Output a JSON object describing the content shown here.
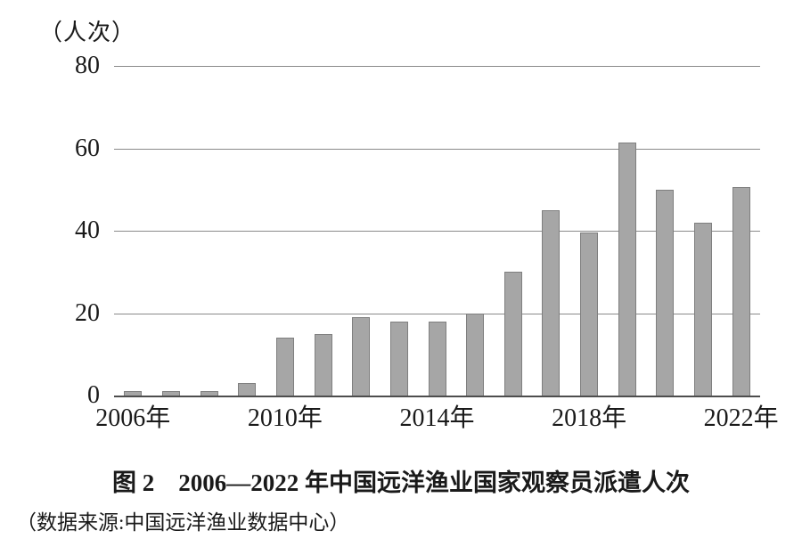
{
  "chart_data": {
    "type": "bar",
    "title": "图 2　2006—2022 年中国远洋渔业国家观察员派遣人次",
    "unit_label": "（人次）",
    "x": [
      2006,
      2007,
      2008,
      2009,
      2010,
      2011,
      2012,
      2013,
      2014,
      2015,
      2016,
      2017,
      2018,
      2019,
      2020,
      2021,
      2022
    ],
    "values": [
      1,
      1,
      1,
      3,
      14,
      15,
      19,
      18,
      18,
      20,
      30,
      45,
      39.5,
      61.5,
      50,
      42,
      50.5
    ],
    "y_ticks": [
      0,
      20,
      40,
      60,
      80
    ],
    "ylim": [
      0,
      80
    ],
    "x_tick_labels": [
      "2006年",
      "2010年",
      "2014年",
      "2018年",
      "2022年"
    ],
    "x_tick_positions": [
      0,
      4,
      8,
      12,
      16
    ],
    "grid": true,
    "legend": false,
    "bar_color": "#a6a6a6",
    "bar_border_color": "#7f7f7f",
    "gridline_color": "#8a8a8a",
    "axis_color": "#4d4d4d"
  },
  "caption": "图 2　2006—2022 年中国远洋渔业国家观察员派遣人次",
  "source": "（数据来源:中国远洋渔业数据中心）"
}
